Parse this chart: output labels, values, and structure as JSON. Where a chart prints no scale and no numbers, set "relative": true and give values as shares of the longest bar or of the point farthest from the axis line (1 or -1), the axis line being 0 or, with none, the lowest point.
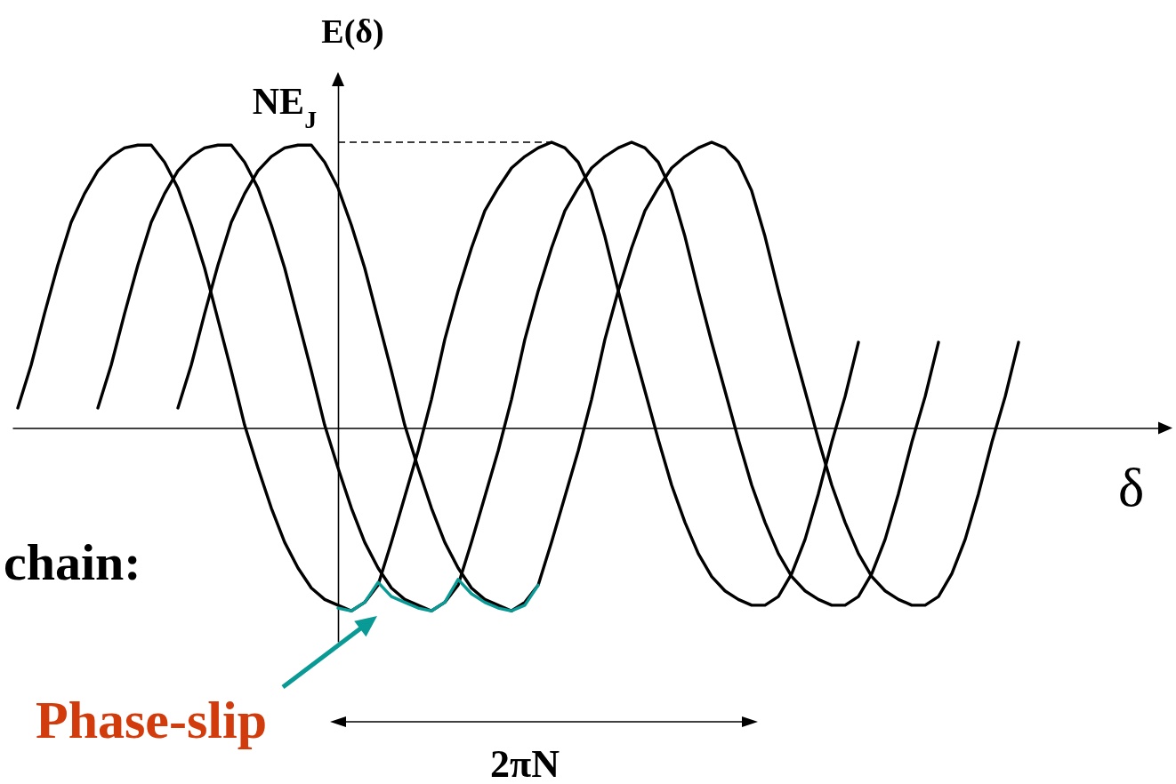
{
  "chart_data": {
    "type": "line",
    "relative": true,
    "xlabel": "δ",
    "ylabel": "E(δ)",
    "categories": [
      null,
      null,
      null,
      null,
      null,
      null,
      null,
      null,
      null,
      null,
      null,
      null,
      null,
      null,
      null,
      null,
      null,
      null,
      null,
      null,
      null,
      null,
      null,
      null,
      null,
      null,
      null,
      null,
      null,
      null,
      null,
      null,
      null,
      null,
      null,
      null,
      null,
      null,
      null,
      null,
      null,
      null,
      null,
      null,
      null,
      null,
      null,
      null,
      null,
      null,
      null,
      null,
      null,
      null,
      null,
      null,
      null,
      null,
      null,
      null,
      null,
      null,
      null,
      null,
      null,
      null,
      null,
      null,
      null,
      null,
      null,
      null,
      null,
      null,
      null,
      null
    ],
    "series": [
      {
        "color": "#000000",
        "values": [
          0.07,
          0.22,
          0.4,
          0.57,
          0.72,
          0.82,
          0.9,
          0.95,
          0.98,
          0.99,
          0.99,
          0.93,
          0.84,
          0.71,
          0.56,
          0.38,
          0.2,
          0.01,
          -0.14,
          -0.28,
          -0.4,
          -0.49,
          -0.56,
          -0.6,
          -0.62,
          -0.64,
          -0.61,
          -0.55,
          -0.4,
          -0.24,
          -0.08,
          0.1,
          0.31,
          0.48,
          0.63,
          0.76,
          0.84,
          0.91,
          0.95,
          0.98,
          1.0,
          0.98,
          0.93,
          0.83,
          0.67,
          0.48,
          0.3,
          0.13,
          -0.04,
          -0.2,
          -0.33,
          -0.44,
          -0.52,
          -0.57,
          -0.6,
          -0.62,
          -0.62,
          -0.59,
          -0.51,
          -0.39,
          -0.23,
          -0.05,
          0.11,
          0.3,
          null,
          null,
          null,
          null,
          null,
          null,
          null,
          null,
          null,
          null,
          null,
          null
        ]
      },
      {
        "color": "#000000",
        "values": [
          null,
          null,
          null,
          null,
          null,
          null,
          0.07,
          0.22,
          0.4,
          0.57,
          0.72,
          0.82,
          0.9,
          0.95,
          0.98,
          0.99,
          0.99,
          0.93,
          0.84,
          0.71,
          0.56,
          0.38,
          0.2,
          0.01,
          -0.14,
          -0.28,
          -0.4,
          -0.49,
          -0.56,
          -0.6,
          -0.62,
          -0.64,
          -0.61,
          -0.55,
          -0.4,
          -0.24,
          -0.08,
          0.1,
          0.31,
          0.48,
          0.63,
          0.76,
          0.84,
          0.91,
          0.95,
          0.98,
          1.0,
          0.98,
          0.93,
          0.83,
          0.67,
          0.48,
          0.3,
          0.13,
          -0.04,
          -0.2,
          -0.33,
          -0.44,
          -0.52,
          -0.57,
          -0.6,
          -0.62,
          -0.62,
          -0.59,
          -0.51,
          -0.39,
          -0.23,
          -0.05,
          0.11,
          0.3,
          null,
          null,
          null,
          null,
          null,
          null
        ]
      },
      {
        "color": "#000000",
        "values": [
          null,
          null,
          null,
          null,
          null,
          null,
          null,
          null,
          null,
          null,
          null,
          null,
          0.07,
          0.22,
          0.4,
          0.57,
          0.72,
          0.82,
          0.9,
          0.95,
          0.98,
          0.99,
          0.99,
          0.93,
          0.84,
          0.71,
          0.56,
          0.38,
          0.2,
          0.01,
          -0.14,
          -0.28,
          -0.4,
          -0.49,
          -0.56,
          -0.6,
          -0.62,
          -0.64,
          -0.61,
          -0.55,
          -0.4,
          -0.24,
          -0.08,
          0.1,
          0.31,
          0.48,
          0.63,
          0.76,
          0.84,
          0.91,
          0.95,
          0.98,
          1.0,
          0.98,
          0.93,
          0.83,
          0.67,
          0.48,
          0.3,
          0.13,
          -0.04,
          -0.2,
          -0.33,
          -0.44,
          -0.52,
          -0.57,
          -0.6,
          -0.62,
          -0.62,
          -0.59,
          -0.51,
          -0.39,
          -0.23,
          -0.05,
          0.11,
          0.3
        ]
      },
      {
        "color": "#0a9a96",
        "values": [
          null,
          null,
          null,
          null,
          null,
          null,
          null,
          null,
          null,
          null,
          null,
          null,
          null,
          null,
          null,
          null,
          null,
          null,
          null,
          null,
          null,
          null,
          null,
          null,
          -0.63,
          -0.64,
          -0.61,
          -0.54,
          -0.59,
          -0.61,
          -0.63,
          -0.64,
          -0.61,
          -0.53,
          -0.58,
          -0.61,
          -0.63,
          -0.64,
          -0.62,
          -0.55,
          null,
          null,
          null,
          null,
          null,
          null,
          null,
          null,
          null,
          null,
          null,
          null,
          null,
          null,
          null,
          null,
          null,
          null,
          null,
          null,
          null,
          null,
          null,
          null,
          null,
          null,
          null,
          null,
          null,
          null,
          null,
          null,
          null,
          null,
          null,
          null
        ]
      }
    ],
    "ref_lines": [
      {
        "axis": "y",
        "value": 1,
        "label": "NE$_{J}$",
        "line_style": "dashed",
        "color": "#000000"
      }
    ],
    "annotations": [
      "chain:",
      "Phase-slip",
      "2πN"
    ]
  }
}
